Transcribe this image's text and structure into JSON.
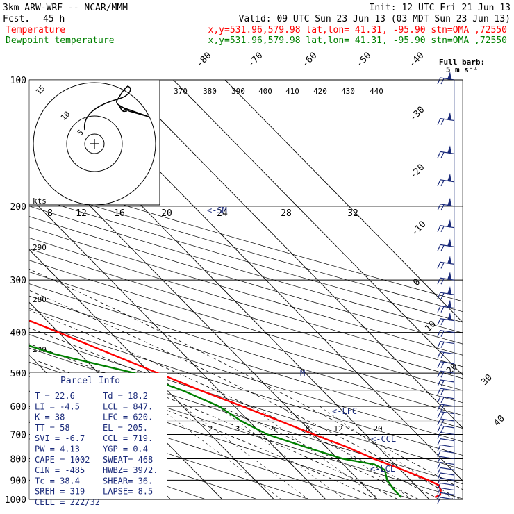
{
  "header": {
    "model": "3km ARW-WRF -- NCAR/MMM",
    "init": "Init: 12 UTC Fri 21 Jun 13",
    "fcst_label": "Fcst.",
    "fcst_value": "45 h",
    "valid": "Valid: 09 UTC Sun 23 Jun 13 (03 MDT Sun 23 Jun 13)",
    "temp_label": "Temperature",
    "temp_info": "x,y=531.96,579.98   lat,lon= 41.31, -95.90  stn=OMA ,72550",
    "dew_label": "Dewpoint temperature",
    "dew_info": "x,y=531.96,579.98   lat,lon= 41.31, -95.90  stn=OMA ,72550"
  },
  "barb_legend": {
    "line1": "Full barb:",
    "line2": "5 m s⁻¹"
  },
  "hodograph": {
    "units_label": "kts",
    "ring_labels": [
      "5",
      "10",
      "15"
    ],
    "speed_labels": [
      "8",
      "12",
      "16",
      "20",
      "24",
      "28",
      "32"
    ],
    "storm_marker": "<-SM"
  },
  "parcel": {
    "title": "Parcel Info",
    "rows": [
      [
        "T   =   22.6",
        "Td =  18.2"
      ],
      [
        "LI  =   -4.5",
        "LCL =  847."
      ],
      [
        "K   =     38",
        "LFC =  620."
      ],
      [
        "TT  =     58",
        "EL  =  205."
      ],
      [
        "SVI =   -6.7",
        "CCL =  719."
      ],
      [
        "PW  =   4.13",
        "YGP =   0.4"
      ],
      [
        "CAPE =  1002",
        "SWEAT=   468"
      ],
      [
        "CIN  =  -485",
        "HWBZ= 3972."
      ],
      [
        "Tc   =  38.4",
        "SHEAR=   36."
      ],
      [
        "SREH =   319",
        "LAPSE=   8.5"
      ],
      [
        "CELL = 222/32",
        ""
      ]
    ]
  },
  "level_markers": {
    "lfc": "<-LFC",
    "ccl": "<-CCL",
    "lcl": "<-LCL",
    "m": "M"
  },
  "colors": {
    "temperature": "#ff0000",
    "dewpoint": "#008000",
    "grid": "#000000",
    "navy": "#1a2a7a"
  },
  "chart_data": {
    "type": "line",
    "subtype": "skew-T log-p sounding",
    "pressure_levels": [
      100,
      200,
      300,
      400,
      500,
      600,
      700,
      800,
      900,
      1000
    ],
    "isotherm_labels": [
      "-80",
      "-70",
      "-60",
      "-50",
      "-40",
      "-30",
      "-20",
      "-10",
      "0",
      "10",
      "20",
      "30",
      "40"
    ],
    "isotherm_values": [
      -80,
      -70,
      -60,
      -50,
      -40,
      -30,
      -20,
      -10,
      0,
      10,
      20,
      30,
      40
    ],
    "theta_labels": [
      "370",
      "380",
      "390",
      "400",
      "410",
      "420",
      "430",
      "440"
    ],
    "theta_left_labels": [
      "290",
      "280",
      "270"
    ],
    "mixing_ratio_labels": [
      "2",
      "3",
      "5",
      "8",
      "12",
      "20"
    ],
    "series": [
      {
        "name": "Temperature",
        "color": "#ff0000",
        "p": [
          988,
          975,
          950,
          925,
          900,
          875,
          850,
          800,
          750,
          700,
          650,
          600,
          550,
          500,
          450,
          400,
          350,
          300,
          250,
          200,
          180,
          160,
          140,
          120,
          110,
          100
        ],
        "t": [
          21.5,
          23,
          24,
          24.5,
          23.5,
          22,
          20.5,
          17,
          14,
          10,
          6,
          1.5,
          -3.5,
          -8.5,
          -14,
          -20,
          -27,
          -35,
          -43,
          -52,
          -57,
          -61,
          -60,
          -57,
          -55,
          -55
        ]
      },
      {
        "name": "Dewpoint temperature",
        "color": "#008000",
        "p": [
          988,
          950,
          900,
          850,
          825,
          800,
          750,
          700,
          650,
          600,
          550,
          500,
          450,
          420,
          400,
          350,
          320,
          300,
          270,
          250,
          220,
          200,
          180,
          160,
          130,
          100
        ],
        "t": [
          15,
          15,
          15.5,
          17,
          16,
          11,
          6,
          1,
          -1.5,
          -3,
          -7,
          -13,
          -25,
          -30,
          -32,
          -33,
          -36,
          -40,
          -38,
          -42,
          -47,
          -52,
          -57,
          -65,
          -72,
          -80
        ]
      }
    ],
    "xlabel": "",
    "ylabel": "",
    "ylim": [
      1000,
      100
    ],
    "grid": true,
    "y_scale": "log"
  }
}
